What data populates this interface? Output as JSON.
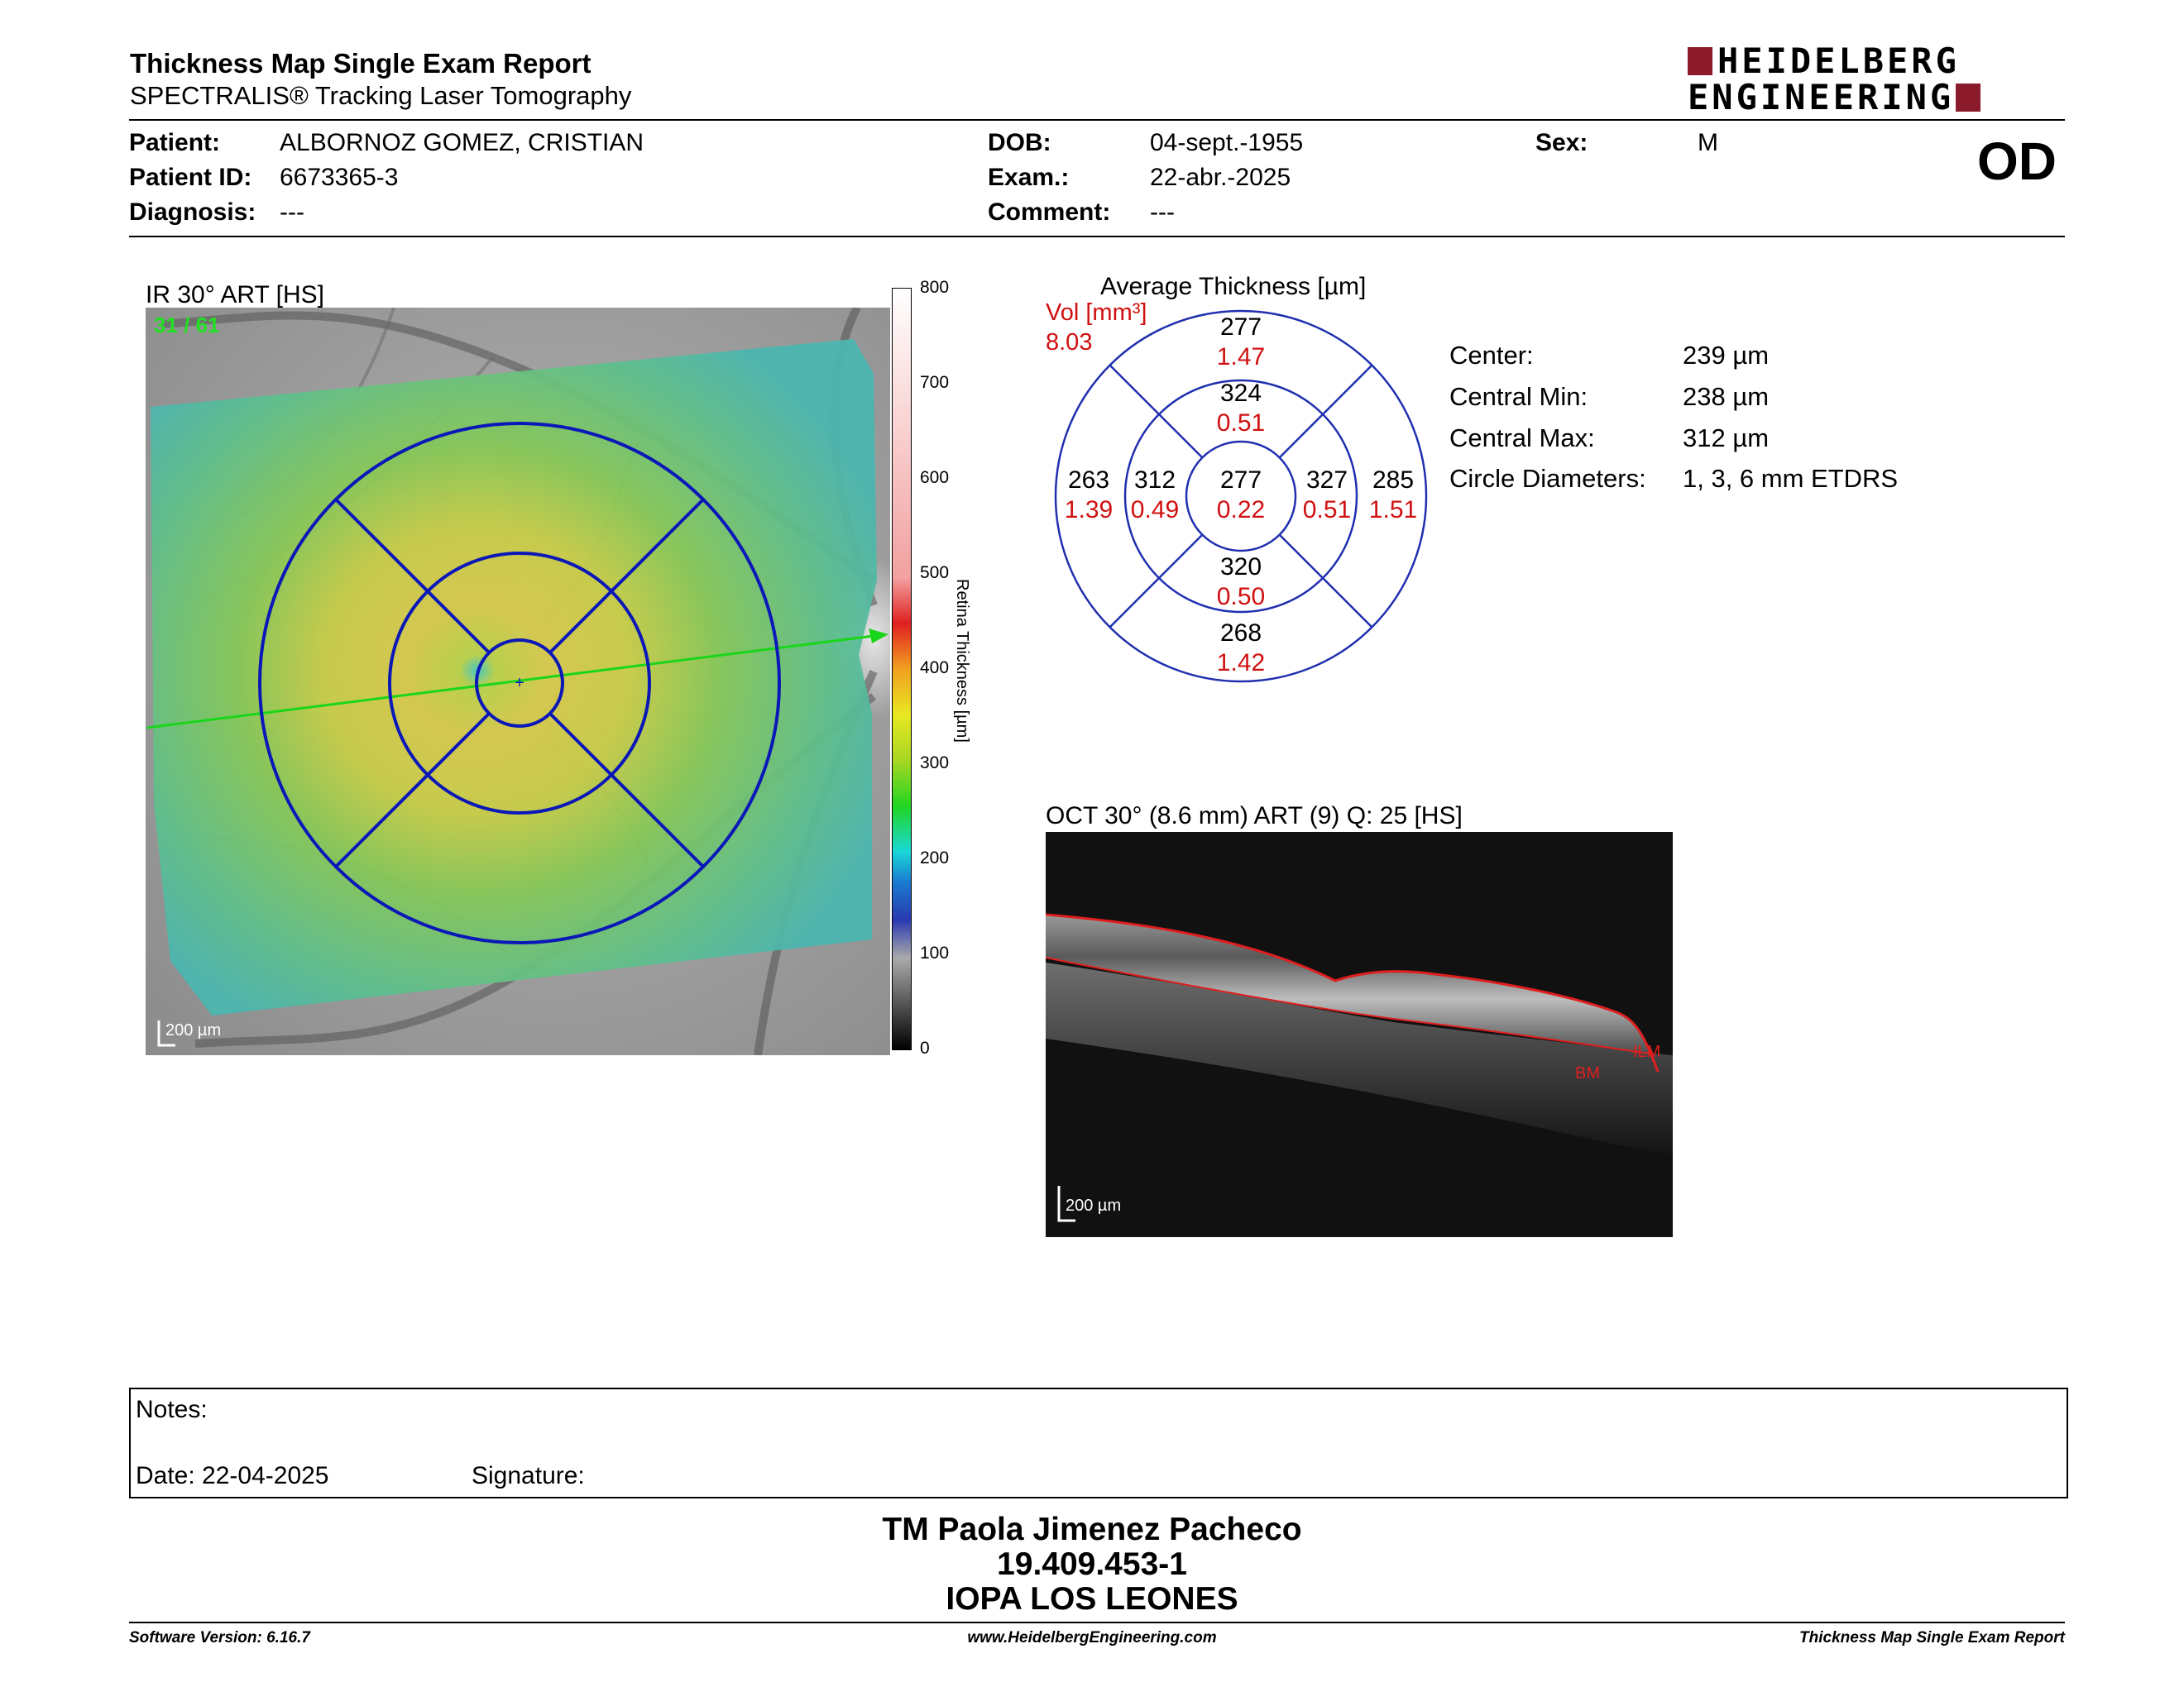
{
  "header": {
    "title": "Thickness Map Single Exam Report",
    "subtitle": "SPECTRALIS® Tracking Laser Tomography",
    "logo_line1": "HEIDELBERG",
    "logo_line2": "ENGINEERING",
    "eye": "OD"
  },
  "patient": {
    "patient_label": "Patient:",
    "patient_value": "ALBORNOZ GOMEZ, CRISTIAN",
    "id_label": "Patient ID:",
    "id_value": "6673365-3",
    "diagnosis_label": "Diagnosis:",
    "diagnosis_value": "---",
    "dob_label": "DOB:",
    "dob_value": "04-sept.-1955",
    "exam_label": "Exam.:",
    "exam_value": "22-abr.-2025",
    "comment_label": "Comment:",
    "comment_value": "---",
    "sex_label": "Sex:",
    "sex_value": "M"
  },
  "fundus": {
    "title": "IR 30° ART [HS]",
    "frame_counter": "31 / 61",
    "scale_label": "200 µm"
  },
  "colorbar": {
    "ticks": [
      "800",
      "700",
      "600",
      "500",
      "400",
      "300",
      "200",
      "100",
      "0"
    ],
    "axis_label": "Retina Thickness [µm]"
  },
  "etdrs": {
    "title": "Average Thickness [µm]",
    "vol_label": "Vol [mm³]",
    "vol_value": "8.03",
    "outer_superior": {
      "thickness": "277",
      "volume": "1.47"
    },
    "inner_superior": {
      "thickness": "324",
      "volume": "0.51"
    },
    "outer_temporal": {
      "thickness": "263",
      "volume": "1.39"
    },
    "inner_temporal": {
      "thickness": "312",
      "volume": "0.49"
    },
    "center": {
      "thickness": "277",
      "volume": "0.22"
    },
    "inner_nasal": {
      "thickness": "327",
      "volume": "0.51"
    },
    "outer_nasal": {
      "thickness": "285",
      "volume": "1.51"
    },
    "inner_inferior": {
      "thickness": "320",
      "volume": "0.50"
    },
    "outer_inferior": {
      "thickness": "268",
      "volume": "1.42"
    }
  },
  "stats": {
    "center_label": "Center:",
    "center_value": "239 µm",
    "min_label": "Central Min:",
    "min_value": "238 µm",
    "max_label": "Central Max:",
    "max_value": "312 µm",
    "diam_label": "Circle Diameters:",
    "diam_value": "1, 3, 6 mm ETDRS"
  },
  "oct": {
    "title": "OCT 30° (8.6 mm) ART (9) Q: 25 [HS]",
    "ilm_label": "ILM",
    "bm_label": "BM",
    "scale_label": "200 µm"
  },
  "notes": {
    "notes_label": "Notes:",
    "date_label": "Date: 22-04-2025",
    "signature_label": "Signature:"
  },
  "signature_block": {
    "name": "TM Paola Jimenez Pacheco",
    "rut": "19.409.453-1",
    "institution": "IOPA LOS LEONES"
  },
  "footer": {
    "software": "Software Version: 6.16.7",
    "website": "www.HeidelbergEngineering.com",
    "report": "Thickness Map Single Exam Report"
  },
  "colors": {
    "accent_red": "#8b1a2b",
    "etdrs_blue": "#1f2fb0",
    "volume_red": "#d01010",
    "scan_line_green": "#1ad61a"
  }
}
